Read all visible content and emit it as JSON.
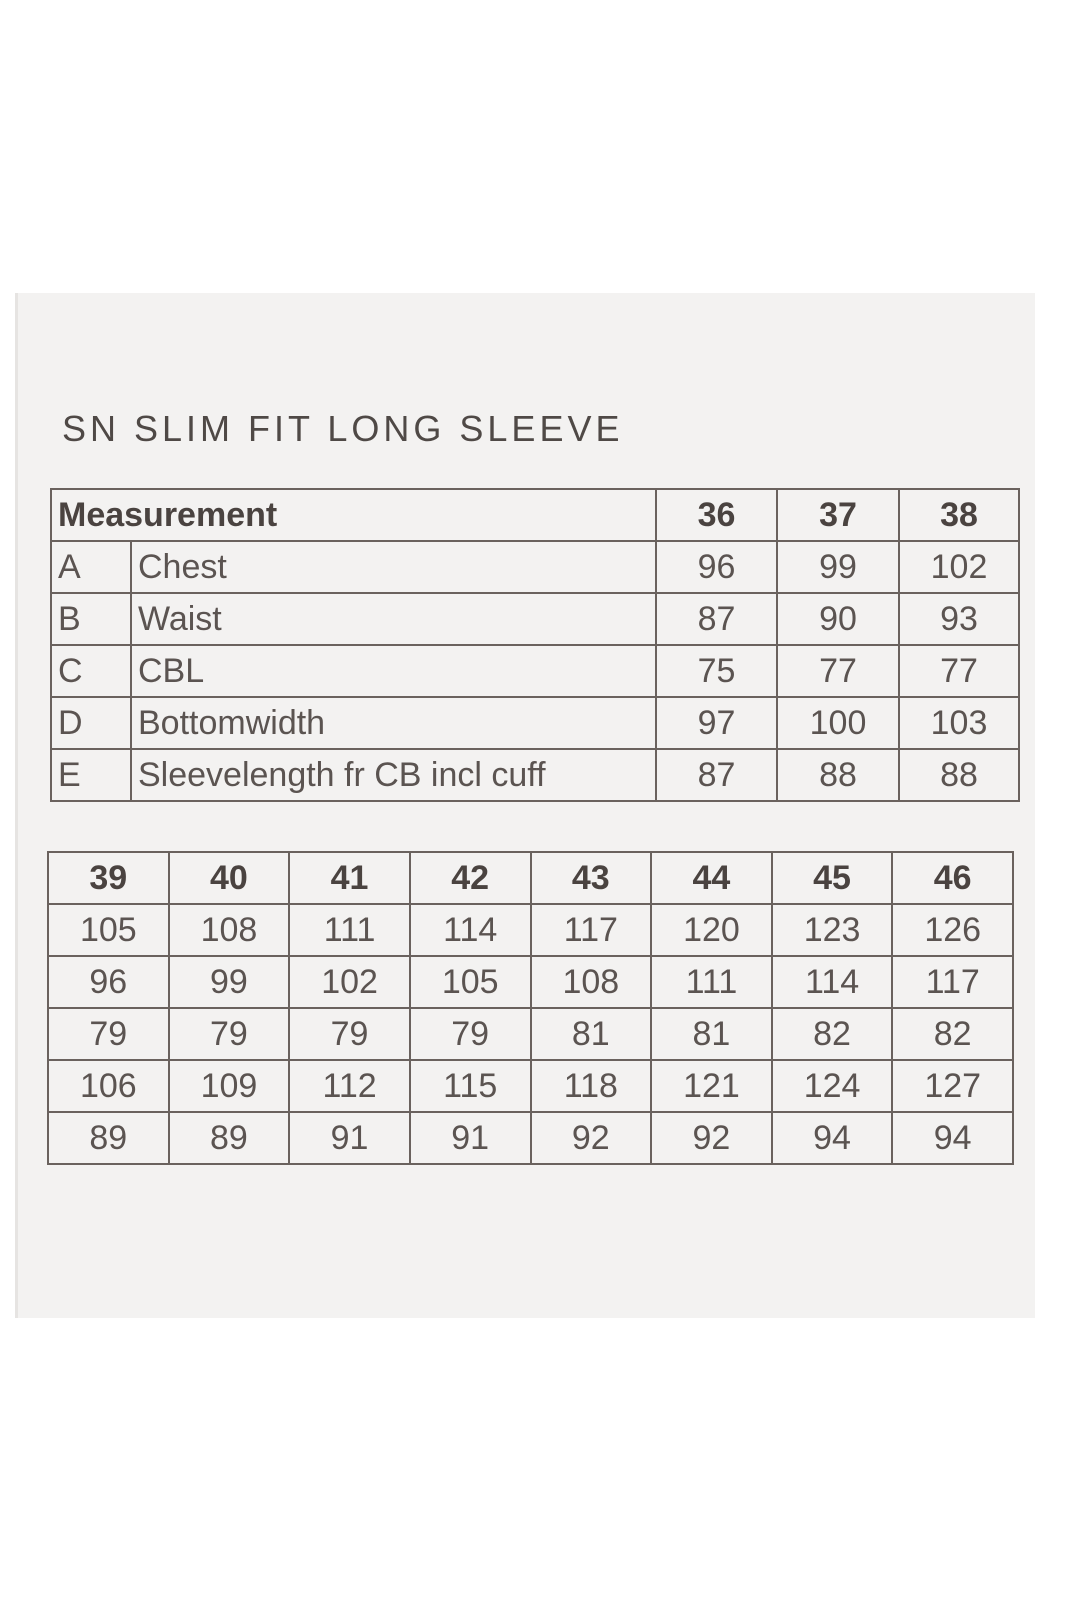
{
  "title": "SN SLIM FIT LONG SLEEVE",
  "table1": {
    "header_label": "Measurement",
    "sizes": [
      "36",
      "37",
      "38"
    ],
    "rows": [
      {
        "code": "A",
        "label": "Chest",
        "values": [
          "96",
          "99",
          "102"
        ]
      },
      {
        "code": "B",
        "label": "Waist",
        "values": [
          "87",
          "90",
          "93"
        ]
      },
      {
        "code": "C",
        "label": "CBL",
        "values": [
          "75",
          "77",
          "77"
        ]
      },
      {
        "code": "D",
        "label": "Bottomwidth",
        "values": [
          "97",
          "100",
          "103"
        ]
      },
      {
        "code": "E",
        "label": "Sleevelength fr CB incl cuff",
        "values": [
          "87",
          "88",
          "88"
        ]
      }
    ]
  },
  "table2": {
    "sizes": [
      "39",
      "40",
      "41",
      "42",
      "43",
      "44",
      "45",
      "46"
    ],
    "rows": [
      [
        "105",
        "108",
        "111",
        "114",
        "117",
        "120",
        "123",
        "126"
      ],
      [
        "96",
        "99",
        "102",
        "105",
        "108",
        "111",
        "114",
        "117"
      ],
      [
        "79",
        "79",
        "79",
        "79",
        "81",
        "81",
        "82",
        "82"
      ],
      [
        "106",
        "109",
        "112",
        "115",
        "118",
        "121",
        "124",
        "127"
      ],
      [
        "89",
        "89",
        "91",
        "91",
        "92",
        "92",
        "94",
        "94"
      ]
    ]
  }
}
